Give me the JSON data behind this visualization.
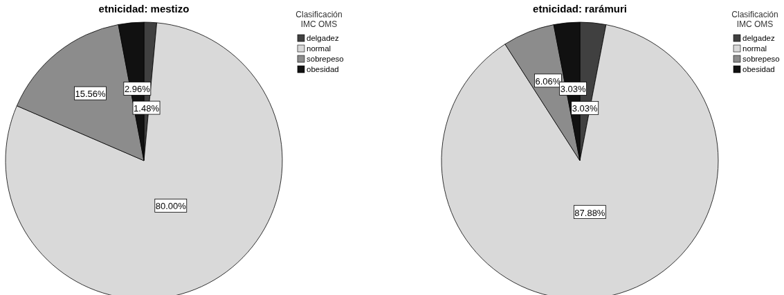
{
  "chart_data": [
    {
      "type": "pie",
      "title": "etnicidad: mestizo",
      "legend_title": "Clasificación IMC OMS",
      "legend": "right",
      "data_labels": true,
      "categories": [
        "delgadez",
        "normal",
        "sobrepeso",
        "obesidad"
      ],
      "values": [
        1.48,
        80.0,
        15.56,
        2.96
      ],
      "value_labels": [
        "1.48%",
        "80.00%",
        "15.56%",
        "2.96%"
      ],
      "colors": [
        "#404040",
        "#d9d9d9",
        "#8c8c8c",
        "#111111"
      ]
    },
    {
      "type": "pie",
      "title": "etnicidad: rarámuri",
      "legend_title": "Clasificación IMC OMS",
      "legend": "right",
      "data_labels": true,
      "categories": [
        "delgadez",
        "normal",
        "sobrepeso",
        "obesidad"
      ],
      "values": [
        3.03,
        87.88,
        6.06,
        3.03
      ],
      "value_labels": [
        "3.03%",
        "87.88%",
        "6.06%",
        "3.03%"
      ],
      "colors": [
        "#404040",
        "#d9d9d9",
        "#8c8c8c",
        "#111111"
      ]
    }
  ]
}
